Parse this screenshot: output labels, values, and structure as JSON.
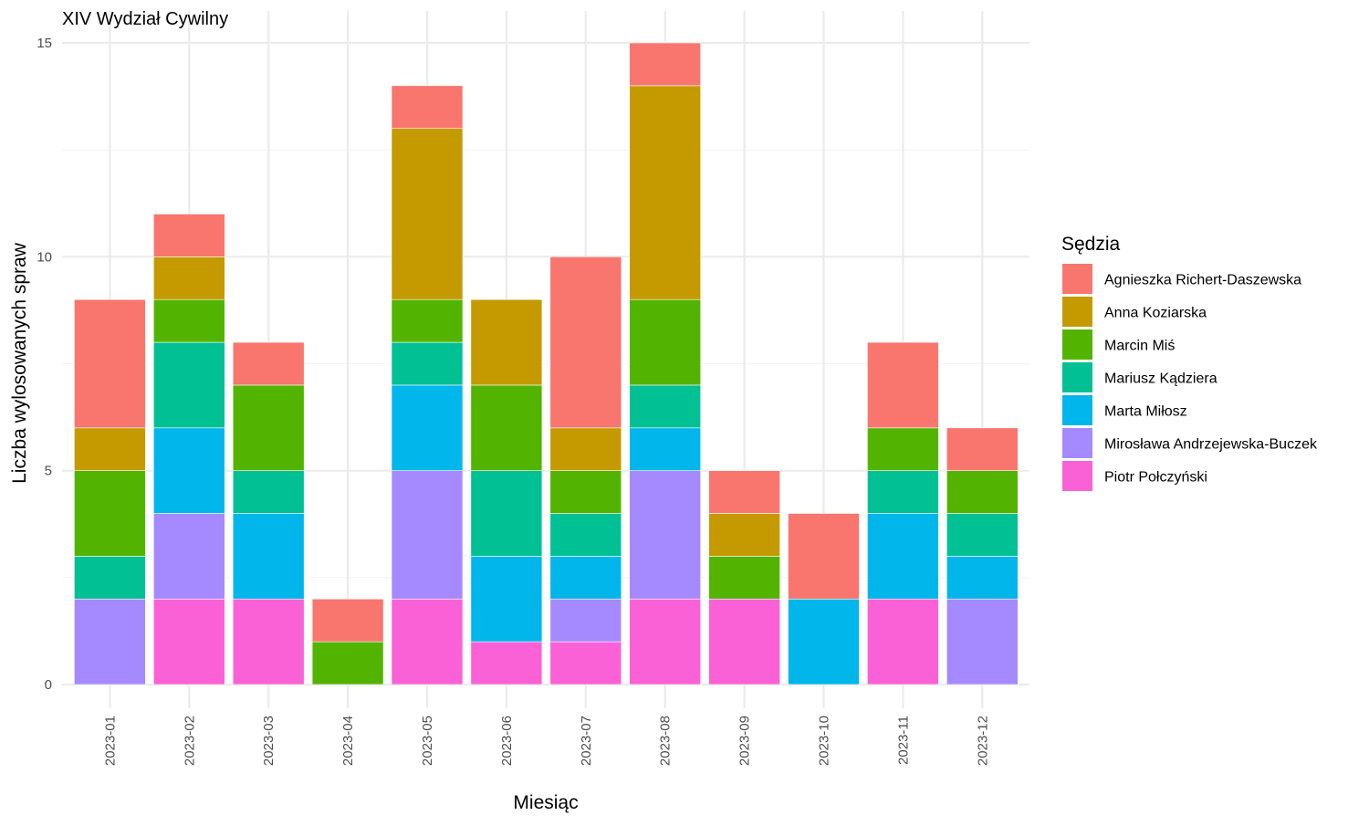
{
  "chart_data": {
    "type": "bar",
    "stacked": true,
    "title": "XIV Wydział Cywilny",
    "xlabel": "Miesiąc",
    "ylabel": "Liczba wylosowanych spraw",
    "ylim": [
      0,
      15
    ],
    "yticks": [
      0,
      5,
      10,
      15
    ],
    "grid": true,
    "legend_position": "right",
    "legend_title": "Sędzia",
    "categories": [
      "2023-01",
      "2023-02",
      "2023-03",
      "2023-04",
      "2023-05",
      "2023-06",
      "2023-07",
      "2023-08",
      "2023-09",
      "2023-10",
      "2023-11",
      "2023-12"
    ],
    "series": [
      {
        "name": "Agnieszka Richert-Daszewska",
        "color": "#F8766D",
        "values": [
          3,
          1,
          1,
          1,
          1,
          0,
          4,
          1,
          1,
          2,
          2,
          1
        ]
      },
      {
        "name": "Anna Koziarska",
        "color": "#C49A00",
        "values": [
          1,
          1,
          0,
          0,
          4,
          2,
          1,
          5,
          1,
          0,
          0,
          0
        ]
      },
      {
        "name": "Marcin Miś",
        "color": "#53B400",
        "values": [
          2,
          1,
          2,
          1,
          1,
          2,
          1,
          2,
          1,
          0,
          1,
          1
        ]
      },
      {
        "name": "Mariusz Kądziera",
        "color": "#00C094",
        "values": [
          1,
          2,
          1,
          0,
          1,
          2,
          1,
          1,
          0,
          0,
          1,
          1
        ]
      },
      {
        "name": "Marta Miłosz",
        "color": "#00B6EB",
        "values": [
          0,
          2,
          2,
          0,
          2,
          2,
          1,
          1,
          0,
          2,
          2,
          1
        ]
      },
      {
        "name": "Mirosława Andrzejewska-Buczek",
        "color": "#A58AFF",
        "values": [
          2,
          2,
          0,
          0,
          3,
          0,
          1,
          3,
          0,
          0,
          0,
          2
        ]
      },
      {
        "name": "Piotr Połczyński",
        "color": "#FB61D7",
        "values": [
          0,
          2,
          2,
          0,
          2,
          1,
          1,
          2,
          2,
          0,
          2,
          0
        ]
      }
    ]
  }
}
